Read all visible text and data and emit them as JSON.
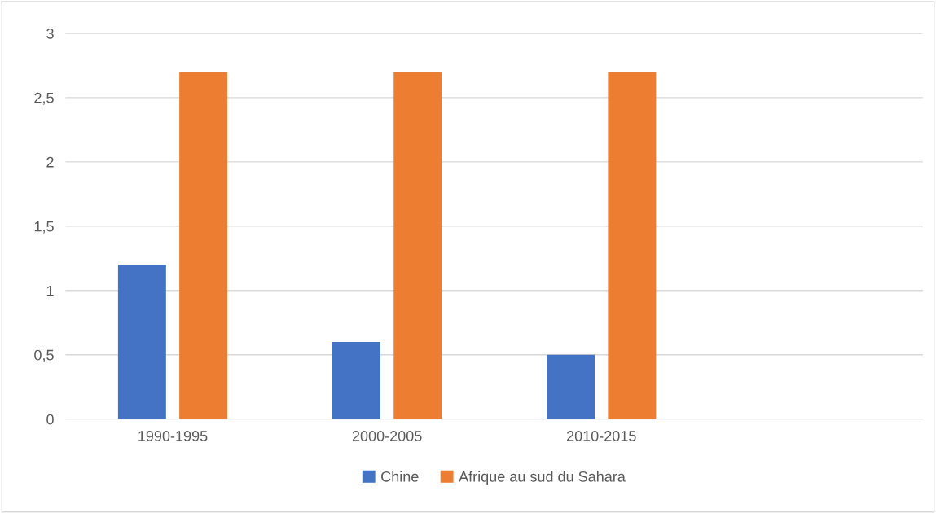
{
  "chart_data": {
    "type": "bar",
    "categories": [
      "1990-1995",
      "2000-2005",
      "2010-2015",
      null
    ],
    "series": [
      {
        "name": "Chine",
        "color": "#4472c4",
        "values": [
          1.2,
          0.6,
          0.5,
          null
        ]
      },
      {
        "name": "Afrique au sud du Sahara",
        "color": "#ed7d31",
        "values": [
          2.7,
          2.7,
          2.7,
          null
        ]
      }
    ],
    "ylim": [
      0,
      3
    ],
    "yticks": [
      0,
      {
        "value": 0.5,
        "label": "0,5"
      },
      1,
      {
        "value": 1.5,
        "label": "1,5"
      },
      2,
      {
        "value": 2.5,
        "label": "2,5"
      },
      3
    ],
    "grid": "y",
    "legend": "bottom"
  }
}
